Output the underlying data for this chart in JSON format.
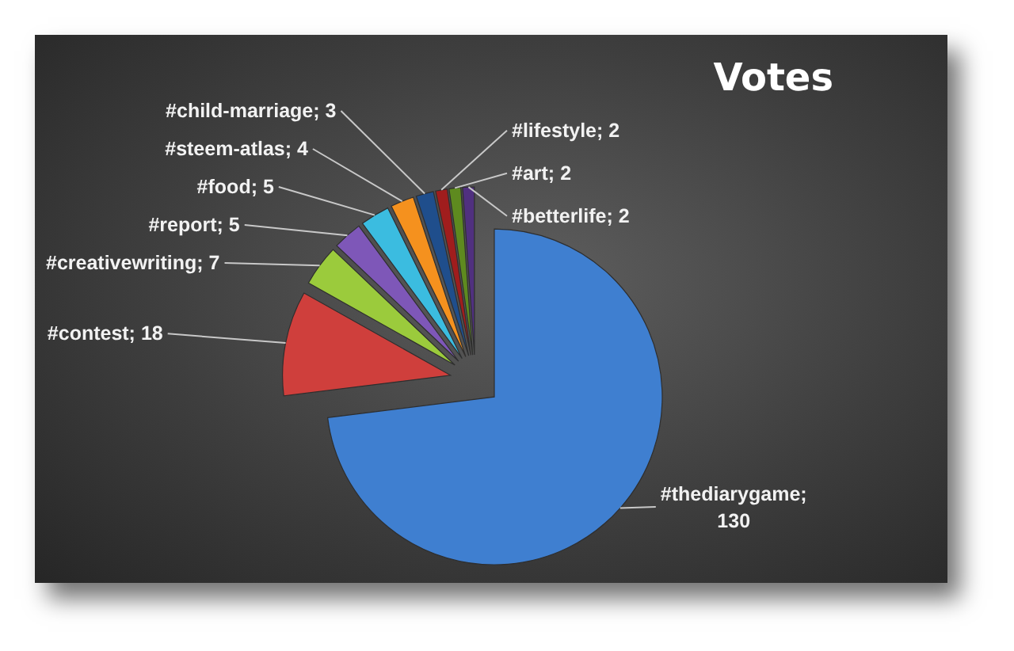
{
  "chart_data": {
    "type": "pie",
    "title": "Votes",
    "categories": [
      "#thediarygame",
      "#contest",
      "#creativewriting",
      "#report",
      "#food",
      "#steem-atlas",
      "#child-marriage",
      "#lifestyle",
      "#art",
      "#betterlife"
    ],
    "values": [
      130,
      18,
      7,
      5,
      5,
      4,
      3,
      2,
      2,
      2
    ],
    "value_labels": [
      "; 130",
      "; 18",
      "; 7",
      "; 5",
      "; 5",
      "; 4",
      "; 3",
      "; 2",
      "; 2",
      "; 2"
    ],
    "colors": [
      "#3f7fd0",
      "#cf3f3c",
      "#9bcb3c",
      "#7e57b8",
      "#3bbce0",
      "#f5911e",
      "#1f4e8c",
      "#a01d1d",
      "#5e8a1f",
      "#50307f"
    ]
  }
}
